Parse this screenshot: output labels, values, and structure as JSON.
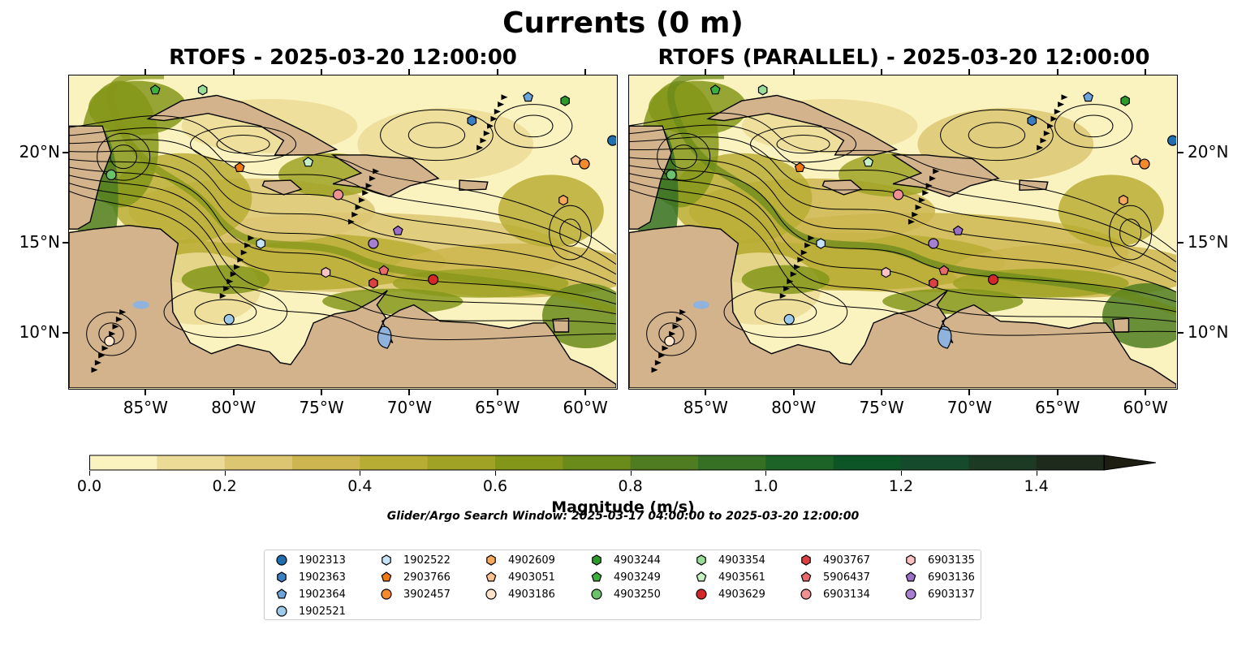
{
  "title": "Currents (0 m)",
  "panels": [
    {
      "title": "RTOFS - 2025-03-20 12:00:00"
    },
    {
      "title": "RTOFS (PARALLEL) - 2025-03-20 12:00:00"
    }
  ],
  "axes": {
    "longitude_ticks": [
      "85°W",
      "80°W",
      "75°W",
      "70°W",
      "65°W",
      "60°W"
    ],
    "latitude_ticks": [
      "20°N",
      "15°N",
      "10°N"
    ],
    "lon_values": [
      -85,
      -80,
      -75,
      -70,
      -65,
      -60
    ],
    "lat_values": [
      20,
      15,
      10
    ]
  },
  "colorbar": {
    "label": "Magnitude (m/s)",
    "ticks": [
      "0.0",
      "0.2",
      "0.4",
      "0.6",
      "0.8",
      "1.0",
      "1.2",
      "1.4"
    ],
    "tick_values": [
      0.0,
      0.2,
      0.4,
      0.6,
      0.8,
      1.0,
      1.2,
      1.4
    ],
    "colors": [
      "#fbf3bf",
      "#ebdb96",
      "#dcc672",
      "#cdb64f",
      "#b8ad34",
      "#9fa224",
      "#84961a",
      "#6a8a1a",
      "#4f7c20",
      "#357024",
      "#1d6227",
      "#0d5426",
      "#154a2c",
      "#1d3a24",
      "#1d2a1c"
    ]
  },
  "search_window": "Glider/Argo Search Window: 2025-03-17 04:00:00 to 2025-03-20 12:00:00",
  "colors": {
    "land": "#d3b38c",
    "lakes": "#8fb3dd"
  },
  "legend": [
    {
      "id": "1902313",
      "marker": "circle",
      "color": "#1f6fb0"
    },
    {
      "id": "1902363",
      "marker": "hexagon",
      "color": "#3a7fc1"
    },
    {
      "id": "1902364",
      "marker": "pentagon",
      "color": "#6ba5dc"
    },
    {
      "id": "1902521",
      "marker": "circle",
      "color": "#9ecae9"
    },
    {
      "id": "1902522",
      "marker": "hexagon",
      "color": "#c6e2f7"
    },
    {
      "id": "2903766",
      "marker": "pentagon",
      "color": "#ef7a12"
    },
    {
      "id": "3902457",
      "marker": "circle",
      "color": "#f58a2a"
    },
    {
      "id": "4902609",
      "marker": "hexagon",
      "color": "#f8a95e"
    },
    {
      "id": "4903051",
      "marker": "pentagon",
      "color": "#fbc290"
    },
    {
      "id": "4903186",
      "marker": "circle",
      "color": "#fde3c8"
    },
    {
      "id": "4903244",
      "marker": "hexagon",
      "color": "#2e9a2e"
    },
    {
      "id": "4903249",
      "marker": "pentagon",
      "color": "#3caf3c"
    },
    {
      "id": "4903250",
      "marker": "circle",
      "color": "#6cc26c"
    },
    {
      "id": "4903354",
      "marker": "hexagon",
      "color": "#98dc98"
    },
    {
      "id": "4903561",
      "marker": "pentagon",
      "color": "#c4f0c4"
    },
    {
      "id": "4903629",
      "marker": "circle",
      "color": "#d62728"
    },
    {
      "id": "4903767",
      "marker": "hexagon",
      "color": "#dc4040"
    },
    {
      "id": "5906437",
      "marker": "pentagon",
      "color": "#e86a6a"
    },
    {
      "id": "6903134",
      "marker": "circle",
      "color": "#f09090"
    },
    {
      "id": "6903135",
      "marker": "hexagon",
      "color": "#fbc0c0"
    },
    {
      "id": "6903136",
      "marker": "pentagon",
      "color": "#9a6fc7"
    },
    {
      "id": "6903137",
      "marker": "circle",
      "color": "#a77fd1"
    }
  ],
  "floats": [
    {
      "id": "1902313",
      "lon": -58.5,
      "lat": 20.7
    },
    {
      "id": "1902363",
      "lon": -66.5,
      "lat": 21.8
    },
    {
      "id": "1902364",
      "lon": -63.3,
      "lat": 23.1
    },
    {
      "id": "1902521",
      "lon": -80.3,
      "lat": 10.8
    },
    {
      "id": "1902522",
      "lon": -78.5,
      "lat": 15.0
    },
    {
      "id": "2903766",
      "lon": -79.7,
      "lat": 19.2
    },
    {
      "id": "3902457",
      "lon": -60.1,
      "lat": 19.4
    },
    {
      "id": "4902609",
      "lon": -61.3,
      "lat": 17.4
    },
    {
      "id": "4903051",
      "lon": -60.6,
      "lat": 19.6
    },
    {
      "id": "4903186",
      "lon": -87.1,
      "lat": 9.6
    },
    {
      "id": "4903244",
      "lon": -61.2,
      "lat": 22.9
    },
    {
      "id": "4903249",
      "lon": -84.5,
      "lat": 23.5
    },
    {
      "id": "4903250",
      "lon": -87.0,
      "lat": 18.8
    },
    {
      "id": "4903354",
      "lon": -81.8,
      "lat": 23.5
    },
    {
      "id": "4903561",
      "lon": -75.8,
      "lat": 19.5
    },
    {
      "id": "4903629",
      "lon": -68.7,
      "lat": 13.0
    },
    {
      "id": "4903767",
      "lon": -72.1,
      "lat": 12.8
    },
    {
      "id": "5906437",
      "lon": -71.5,
      "lat": 13.5
    },
    {
      "id": "6903134",
      "lon": -74.1,
      "lat": 17.7
    },
    {
      "id": "6903135",
      "lon": -74.8,
      "lat": 13.4
    },
    {
      "id": "6903136",
      "lon": -70.7,
      "lat": 15.7
    },
    {
      "id": "6903137",
      "lon": -72.1,
      "lat": 15.0
    }
  ]
}
